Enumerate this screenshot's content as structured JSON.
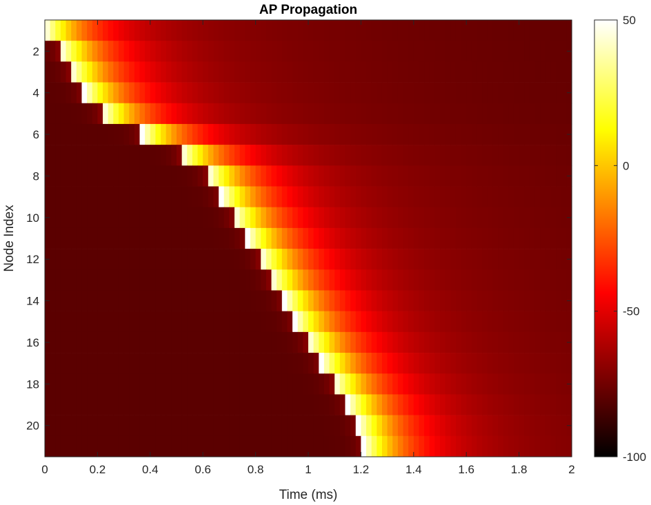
{
  "chart_data": {
    "type": "heatmap",
    "title": "AP Propagation",
    "xlabel": "Time (ms)",
    "ylabel": "Node Index",
    "xlim": [
      0,
      2
    ],
    "ylim": [
      0.5,
      21.5
    ],
    "x_ticks": [
      0,
      0.2,
      0.4,
      0.6,
      0.8,
      1,
      1.2,
      1.4,
      1.6,
      1.8,
      2
    ],
    "x_tick_labels": [
      "0",
      "0.2",
      "0.4",
      "0.6",
      "0.8",
      "1",
      "1.2",
      "1.4",
      "1.6",
      "1.8",
      "2"
    ],
    "y_ticks": [
      2,
      4,
      6,
      8,
      10,
      12,
      14,
      16,
      18,
      20
    ],
    "y_tick_labels": [
      "2",
      "4",
      "6",
      "8",
      "10",
      "12",
      "14",
      "16",
      "18",
      "20"
    ],
    "y_direction": "reverse",
    "colormap": "hot",
    "clim": [
      -100,
      50
    ],
    "colorbar_ticks": [
      50,
      0,
      -50,
      -100
    ],
    "colorbar_tick_labels": [
      "50",
      "0",
      "-50",
      "-100"
    ],
    "rest_potential": -80,
    "time_step_ms": 0.02,
    "nodes": [
      {
        "node": 1,
        "onset_ms": 0.0
      },
      {
        "node": 2,
        "onset_ms": 0.06
      },
      {
        "node": 3,
        "onset_ms": 0.1
      },
      {
        "node": 4,
        "onset_ms": 0.15
      },
      {
        "node": 5,
        "onset_ms": 0.22
      },
      {
        "node": 6,
        "onset_ms": 0.37
      },
      {
        "node": 7,
        "onset_ms": 0.52
      },
      {
        "node": 8,
        "onset_ms": 0.62
      },
      {
        "node": 9,
        "onset_ms": 0.67
      },
      {
        "node": 10,
        "onset_ms": 0.72
      },
      {
        "node": 11,
        "onset_ms": 0.77
      },
      {
        "node": 12,
        "onset_ms": 0.82
      },
      {
        "node": 13,
        "onset_ms": 0.86
      },
      {
        "node": 14,
        "onset_ms": 0.91
      },
      {
        "node": 15,
        "onset_ms": 0.95
      },
      {
        "node": 16,
        "onset_ms": 1.0
      },
      {
        "node": 17,
        "onset_ms": 1.05
      },
      {
        "node": 18,
        "onset_ms": 1.1
      },
      {
        "node": 19,
        "onset_ms": 1.15
      },
      {
        "node": 20,
        "onset_ms": 1.19
      },
      {
        "node": 21,
        "onset_ms": 1.21
      }
    ],
    "waveform": {
      "peak_mV": 50,
      "decay_tau_ms": 0.16,
      "plateau_mV": -60,
      "plateau_tau_ms": 0.9
    },
    "grid": false
  }
}
